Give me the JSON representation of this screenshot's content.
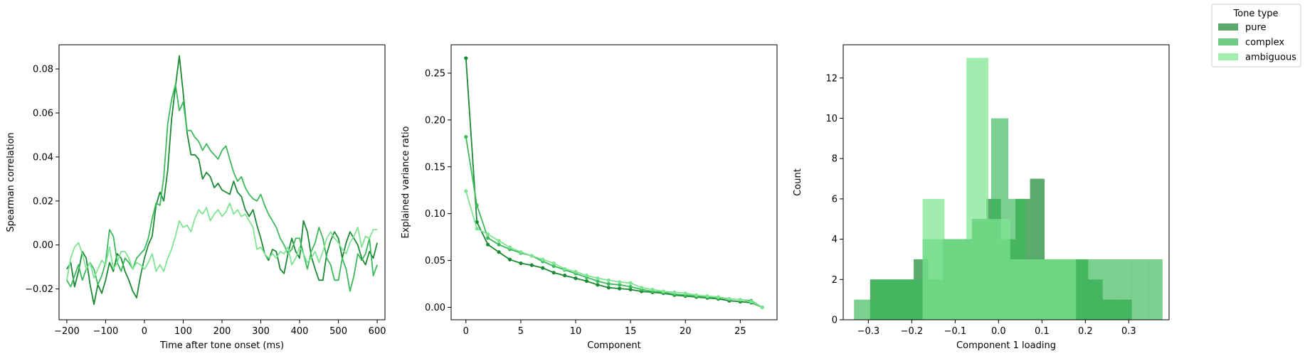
{
  "legend": {
    "title": "Tone type",
    "entries": [
      {
        "label": "pure",
        "color": "#1a8a32"
      },
      {
        "label": "complex",
        "color": "#3cb95a"
      },
      {
        "label": "ambiguous",
        "color": "#7ee492"
      }
    ],
    "placement": "upper-right outside"
  },
  "chart_data": [
    {
      "type": "line",
      "title": "",
      "xlabel": "Time after tone onset (ms)",
      "ylabel": "Spearman correlation",
      "xlim": [
        -220,
        620
      ],
      "ylim": [
        -0.034,
        0.091
      ],
      "xticks": [
        -200,
        -100,
        0,
        100,
        200,
        300,
        400,
        500,
        600
      ],
      "xtick_labels": [
        "−200",
        "−100",
        "0",
        "100",
        "200",
        "300",
        "400",
        "500",
        "600"
      ],
      "yticks": [
        -0.02,
        0.0,
        0.02,
        0.04,
        0.06,
        0.08
      ],
      "ytick_labels": [
        "−0.02",
        "0.00",
        "0.02",
        "0.04",
        "0.06",
        "0.08"
      ],
      "grid": false,
      "series": [
        {
          "name": "pure",
          "color": "#1a8a32",
          "x": [
            -200,
            -190,
            -180,
            -170,
            -160,
            -150,
            -140,
            -130,
            -120,
            -110,
            -100,
            -90,
            -80,
            -70,
            -60,
            -50,
            -40,
            -30,
            -20,
            -10,
            0,
            10,
            20,
            30,
            40,
            50,
            60,
            70,
            80,
            90,
            100,
            110,
            120,
            130,
            140,
            150,
            160,
            170,
            180,
            190,
            200,
            210,
            220,
            230,
            240,
            250,
            260,
            270,
            280,
            290,
            300,
            310,
            320,
            330,
            340,
            350,
            360,
            370,
            380,
            390,
            400,
            410,
            420,
            430,
            440,
            450,
            460,
            470,
            480,
            490,
            500,
            510,
            520,
            530,
            540,
            550,
            560,
            570,
            580,
            590,
            600
          ],
          "y": [
            -0.011,
            -0.008,
            -0.019,
            -0.012,
            -0.003,
            -0.006,
            -0.018,
            -0.027,
            -0.018,
            -0.022,
            -0.016,
            -0.008,
            -0.012,
            -0.004,
            -0.006,
            -0.012,
            -0.016,
            -0.021,
            -0.024,
            -0.014,
            -0.006,
            0.0,
            0.004,
            0.018,
            0.024,
            0.02,
            0.034,
            0.057,
            0.072,
            0.086,
            0.069,
            0.051,
            0.041,
            0.041,
            0.039,
            0.03,
            0.033,
            0.031,
            0.026,
            0.028,
            0.025,
            0.024,
            0.023,
            0.029,
            0.024,
            0.022,
            0.016,
            0.013,
            0.016,
            0.009,
            0.003,
            -0.004,
            -0.007,
            -0.002,
            -0.003,
            -0.011,
            -0.013,
            -0.004,
            0.003,
            -0.003,
            -0.006,
            0.011,
            0.006,
            -0.005,
            -0.011,
            -0.016,
            -0.016,
            -0.004,
            0.002,
            0.006,
            0.003,
            -0.006,
            0.001,
            0.006,
            0.003,
            0.0,
            -0.006,
            -0.009,
            -0.003,
            -0.006,
            0.001
          ]
        },
        {
          "name": "complex",
          "color": "#3cb95a",
          "x": [
            -200,
            -190,
            -180,
            -170,
            -160,
            -150,
            -140,
            -130,
            -120,
            -110,
            -100,
            -90,
            -80,
            -70,
            -60,
            -50,
            -40,
            -30,
            -20,
            -10,
            0,
            10,
            20,
            30,
            40,
            50,
            60,
            70,
            80,
            90,
            100,
            110,
            120,
            130,
            140,
            150,
            160,
            170,
            180,
            190,
            200,
            210,
            220,
            230,
            240,
            250,
            260,
            270,
            280,
            290,
            300,
            310,
            320,
            330,
            340,
            350,
            360,
            370,
            380,
            390,
            400,
            410,
            420,
            430,
            440,
            450,
            460,
            470,
            480,
            490,
            500,
            510,
            520,
            530,
            540,
            550,
            560,
            570,
            580,
            590,
            600
          ],
          "y": [
            -0.016,
            -0.019,
            -0.014,
            -0.009,
            -0.016,
            -0.011,
            -0.008,
            -0.011,
            -0.018,
            -0.014,
            -0.008,
            0.007,
            0.004,
            -0.008,
            -0.012,
            -0.006,
            -0.008,
            -0.011,
            -0.006,
            -0.004,
            -0.002,
            0.003,
            0.012,
            0.019,
            0.018,
            0.031,
            0.055,
            0.066,
            0.073,
            0.061,
            0.065,
            0.052,
            0.052,
            0.049,
            0.047,
            0.043,
            0.046,
            0.043,
            0.041,
            0.039,
            0.043,
            0.045,
            0.039,
            0.033,
            0.029,
            0.031,
            0.026,
            0.023,
            0.021,
            0.02,
            0.023,
            0.018,
            0.014,
            0.011,
            0.008,
            0.003,
            0.0,
            -0.004,
            -0.002,
            0.003,
            0.003,
            -0.004,
            -0.011,
            -0.003,
            0.001,
            0.008,
            0.003,
            -0.006,
            -0.009,
            -0.016,
            -0.016,
            -0.006,
            -0.011,
            -0.021,
            -0.014,
            -0.004,
            -0.007,
            -0.004,
            0.003,
            -0.014,
            -0.009
          ]
        },
        {
          "name": "ambiguous",
          "color": "#7ee492",
          "x": [
            -200,
            -190,
            -180,
            -170,
            -160,
            -150,
            -140,
            -130,
            -120,
            -110,
            -100,
            -90,
            -80,
            -70,
            -60,
            -50,
            -40,
            -30,
            -20,
            -10,
            0,
            10,
            20,
            30,
            40,
            50,
            60,
            70,
            80,
            90,
            100,
            110,
            120,
            130,
            140,
            150,
            160,
            170,
            180,
            190,
            200,
            210,
            220,
            230,
            240,
            250,
            260,
            270,
            280,
            290,
            300,
            310,
            320,
            330,
            340,
            350,
            360,
            370,
            380,
            390,
            400,
            410,
            420,
            430,
            440,
            450,
            460,
            470,
            480,
            490,
            500,
            510,
            520,
            530,
            540,
            550,
            560,
            570,
            580,
            590,
            600
          ],
          "y": [
            -0.016,
            -0.006,
            -0.001,
            0.001,
            -0.004,
            -0.011,
            -0.008,
            -0.015,
            -0.011,
            -0.007,
            -0.009,
            -0.001,
            -0.011,
            -0.008,
            -0.003,
            -0.003,
            -0.006,
            -0.011,
            -0.008,
            -0.009,
            -0.011,
            -0.008,
            -0.004,
            -0.012,
            -0.009,
            -0.012,
            -0.006,
            -0.002,
            0.004,
            0.011,
            0.008,
            0.009,
            0.006,
            0.012,
            0.016,
            0.014,
            0.017,
            0.011,
            0.014,
            0.016,
            0.013,
            0.015,
            0.019,
            0.014,
            0.016,
            0.013,
            0.014,
            0.011,
            0.008,
            -0.002,
            -0.001,
            -0.004,
            -0.006,
            -0.004,
            -0.006,
            -0.003,
            -0.004,
            -0.001,
            -0.009,
            -0.006,
            -0.001,
            -0.004,
            -0.008,
            -0.006,
            -0.003,
            -0.008,
            -0.003,
            0.003,
            0.006,
            0.003,
            0.001,
            -0.002,
            -0.004,
            0.001,
            0.004,
            0.008,
            -0.001,
            0.004,
            0.003,
            0.007,
            0.007
          ]
        }
      ]
    },
    {
      "type": "line",
      "title": "",
      "xlabel": "Component",
      "ylabel": "Explained variance ratio",
      "xlim": [
        -1.35,
        28.35
      ],
      "ylim": [
        -0.0133,
        0.2803
      ],
      "xticks": [
        0,
        5,
        10,
        15,
        20,
        25
      ],
      "xtick_labels": [
        "0",
        "5",
        "10",
        "15",
        "20",
        "25"
      ],
      "yticks": [
        0.0,
        0.05,
        0.1,
        0.15,
        0.2,
        0.25
      ],
      "ytick_labels": [
        "0.00",
        "0.05",
        "0.10",
        "0.15",
        "0.20",
        "0.25"
      ],
      "grid": false,
      "markers": true,
      "series": [
        {
          "name": "pure",
          "color": "#1a8a32",
          "x": [
            0,
            1,
            2,
            3,
            4,
            5,
            6,
            7,
            8,
            9,
            10,
            11,
            12,
            13,
            14,
            15,
            16,
            17,
            18,
            19,
            20,
            21,
            22,
            23,
            24,
            25,
            26,
            27
          ],
          "y": [
            0.266,
            0.091,
            0.067,
            0.059,
            0.051,
            0.047,
            0.045,
            0.042,
            0.037,
            0.034,
            0.031,
            0.028,
            0.024,
            0.021,
            0.02,
            0.019,
            0.017,
            0.016,
            0.015,
            0.013,
            0.012,
            0.011,
            0.01,
            0.009,
            0.007,
            0.006,
            0.005,
            0.0
          ]
        },
        {
          "name": "complex",
          "color": "#3cb95a",
          "x": [
            0,
            1,
            2,
            3,
            4,
            5,
            6,
            7,
            8,
            9,
            10,
            11,
            12,
            13,
            14,
            15,
            16,
            17,
            18,
            19,
            20,
            21,
            22,
            23,
            24,
            25,
            26,
            27
          ],
          "y": [
            0.182,
            0.109,
            0.074,
            0.067,
            0.062,
            0.058,
            0.055,
            0.049,
            0.044,
            0.04,
            0.036,
            0.032,
            0.028,
            0.025,
            0.024,
            0.022,
            0.019,
            0.017,
            0.016,
            0.014,
            0.013,
            0.012,
            0.011,
            0.01,
            0.009,
            0.008,
            0.007,
            0.0
          ]
        },
        {
          "name": "ambiguous",
          "color": "#7ee492",
          "x": [
            0,
            1,
            2,
            3,
            4,
            5,
            6,
            7,
            8,
            9,
            10,
            11,
            12,
            13,
            14,
            15,
            16,
            17,
            18,
            19,
            20,
            21,
            22,
            23,
            24,
            25,
            26,
            27
          ],
          "y": [
            0.124,
            0.084,
            0.078,
            0.071,
            0.064,
            0.059,
            0.055,
            0.051,
            0.047,
            0.041,
            0.038,
            0.034,
            0.031,
            0.029,
            0.027,
            0.026,
            0.021,
            0.019,
            0.017,
            0.016,
            0.015,
            0.013,
            0.012,
            0.011,
            0.009,
            0.008,
            0.006,
            0.0
          ]
        }
      ]
    },
    {
      "type": "bar",
      "subtype": "histogram",
      "title": "",
      "xlabel": "Component 1 loading",
      "ylabel": "Count",
      "xlim": [
        -0.358,
        0.393
      ],
      "ylim": [
        0,
        13.65
      ],
      "xticks": [
        -0.3,
        -0.2,
        -0.1,
        0.0,
        0.1,
        0.2,
        0.3
      ],
      "xtick_labels": [
        "−0.3",
        "−0.2",
        "−0.1",
        "0.0",
        "0.1",
        "0.2",
        "0.3"
      ],
      "yticks": [
        0,
        2,
        4,
        6,
        8,
        10,
        12
      ],
      "ytick_labels": [
        "0",
        "2",
        "4",
        "6",
        "8",
        "10",
        "12"
      ],
      "grid": false,
      "series": [
        {
          "name": "pure",
          "color": "#1a8a32",
          "alpha": 0.72,
          "bin_edges": [
            -0.296,
            -0.2625,
            -0.229,
            -0.1955,
            -0.162,
            -0.1285,
            -0.095,
            -0.0615,
            -0.028,
            0.0055,
            0.039,
            0.0725,
            0.106,
            0.1395,
            0.173,
            0.2065,
            0.24,
            0.2735,
            0.307
          ],
          "counts": [
            2,
            2,
            2,
            3,
            2,
            4,
            4,
            5,
            6,
            4,
            6,
            7,
            3,
            3,
            3,
            2,
            1,
            1
          ]
        },
        {
          "name": "complex",
          "color": "#3cb95a",
          "alpha": 0.68,
          "bin_edges": [
            -0.333,
            -0.2935,
            -0.254,
            -0.2145,
            -0.175,
            -0.1355,
            -0.096,
            -0.0565,
            -0.017,
            0.0225,
            0.062,
            0.1015,
            0.141,
            0.1805,
            0.22,
            0.2595,
            0.299,
            0.3385,
            0.378
          ],
          "counts": [
            1,
            2,
            2,
            2,
            4,
            4,
            4,
            5,
            10,
            6,
            3,
            3,
            3,
            3,
            3,
            3,
            3,
            3
          ]
        },
        {
          "name": "ambiguous",
          "color": "#7ee492",
          "alpha": 0.72,
          "bin_edges": [
            -0.175,
            -0.1245,
            -0.074,
            -0.0235,
            0.027,
            0.0775,
            0.128,
            0.1785
          ],
          "counts": [
            6,
            4,
            13,
            5,
            3,
            3,
            3
          ]
        }
      ]
    }
  ]
}
